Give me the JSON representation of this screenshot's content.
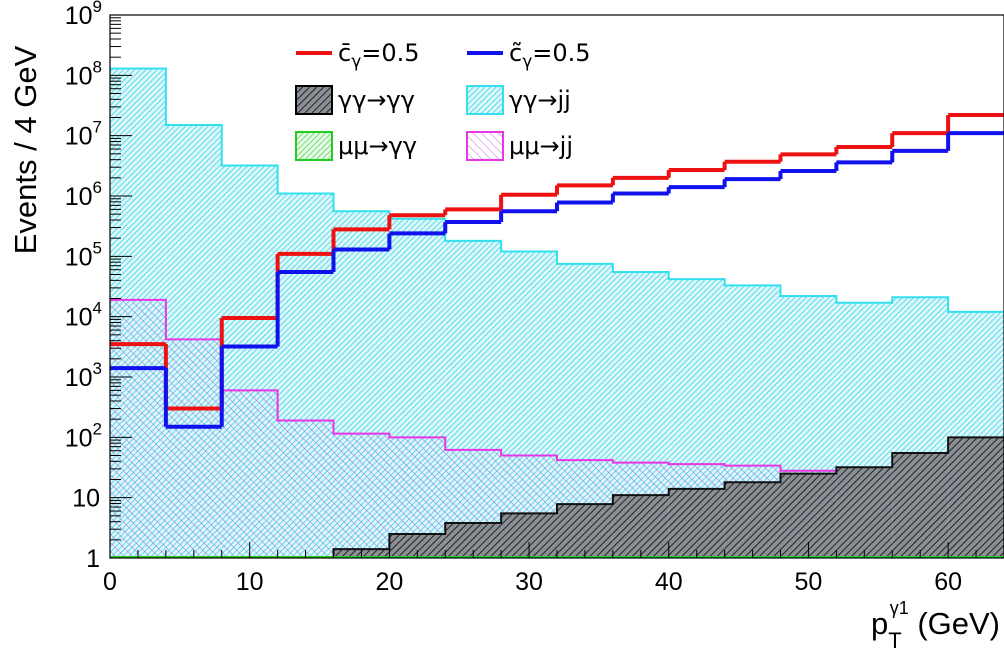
{
  "chart_data": {
    "type": "histogram",
    "xlabel": "p_T^{γ1} (GeV)",
    "xlabel_parts": {
      "base": "p",
      "sub": "T",
      "sup": "γ1",
      "unit": " (GeV)"
    },
    "ylabel": "Events / 4 GeV",
    "xlim": [
      0,
      64
    ],
    "ylim": [
      1,
      1000000000
    ],
    "log_y": true,
    "grid": false,
    "legend_location": "top-center",
    "bin_edges": [
      0,
      4,
      8,
      12,
      16,
      20,
      24,
      28,
      32,
      36,
      40,
      44,
      48,
      52,
      56,
      60,
      64
    ],
    "x_ticks": [
      0,
      10,
      20,
      30,
      40,
      50,
      60
    ],
    "x_tick_labels": [
      "0",
      "10",
      "20",
      "30",
      "40",
      "50",
      "60"
    ],
    "y_ticks": [
      {
        "value": 1,
        "base": "1",
        "exp": ""
      },
      {
        "value": 10,
        "base": "10",
        "exp": ""
      },
      {
        "value": 100,
        "base": "10",
        "exp": "2"
      },
      {
        "value": 1000,
        "base": "10",
        "exp": "3"
      },
      {
        "value": 10000,
        "base": "10",
        "exp": "4"
      },
      {
        "value": 100000,
        "base": "10",
        "exp": "5"
      },
      {
        "value": 1000000,
        "base": "10",
        "exp": "6"
      },
      {
        "value": 10000000,
        "base": "10",
        "exp": "7"
      },
      {
        "value": 100000000,
        "base": "10",
        "exp": "8"
      },
      {
        "value": 1000000000,
        "base": "10",
        "exp": "9"
      }
    ],
    "series": [
      {
        "name": "γγ→jj",
        "style": "fill-hatch",
        "color": "#33e0ee",
        "values": [
          130000000,
          15000000,
          3200000,
          1100000,
          560000,
          420000,
          180000,
          120000,
          75000,
          55000,
          42000,
          33000,
          22000,
          17000,
          21000,
          12000
        ]
      },
      {
        "name": "μμ→jj",
        "style": "fill-hatch",
        "color": "#e636e6",
        "values": [
          19000,
          4200,
          600,
          190,
          115,
          100,
          62,
          50,
          42,
          38,
          36,
          34,
          28,
          22,
          20,
          16
        ]
      },
      {
        "name": "γγ→γγ",
        "style": "fill-hatch-dark",
        "color": "#000000",
        "values": [
          0,
          0,
          0,
          0,
          1.4,
          2.5,
          3.8,
          5.5,
          7.8,
          11,
          14,
          18,
          25,
          32,
          55,
          100
        ]
      },
      {
        "name": "μμ→γγ",
        "style": "fill-hatch",
        "color": "#22cc22",
        "values": [
          0,
          0,
          0,
          0,
          0,
          0,
          0,
          0,
          0,
          0,
          0,
          0,
          0,
          0,
          0,
          0
        ]
      },
      {
        "name": "c̄γ=0.5",
        "style": "line",
        "color": "#ee1111",
        "values": [
          3500,
          300,
          9500,
          110000,
          280000,
          480000,
          600000,
          1050000,
          1500000,
          2000000,
          2700000,
          3700000,
          4900000,
          6500000,
          11000000,
          22000000
        ]
      },
      {
        "name": "c̃γ=0.5",
        "style": "line",
        "color": "#1111ee",
        "values": [
          1400,
          150,
          3200,
          55000,
          130000,
          240000,
          370000,
          560000,
          780000,
          1100000,
          1400000,
          1900000,
          2600000,
          3600000,
          5600000,
          11000000
        ]
      }
    ],
    "legend": [
      {
        "label_main": "c̄",
        "label_sub": "γ",
        "label_tail": "=0.5",
        "color": "#ee1111",
        "kind": "line"
      },
      {
        "label_main": "c̃",
        "label_sub": "γ",
        "label_tail": "=0.5",
        "color": "#1111ee",
        "kind": "line"
      },
      {
        "label_main": "γγ→γγ",
        "label_sub": "",
        "label_tail": "",
        "color": "#000000",
        "kind": "dark"
      },
      {
        "label_main": "γγ→jj",
        "label_sub": "",
        "label_tail": "",
        "color": "#33e0ee",
        "kind": "box"
      },
      {
        "label_main": "μμ→γγ",
        "label_sub": "",
        "label_tail": "",
        "color": "#22cc22",
        "kind": "box"
      },
      {
        "label_main": "μμ→jj",
        "label_sub": "",
        "label_tail": "",
        "color": "#e636e6",
        "kind": "box"
      }
    ]
  }
}
